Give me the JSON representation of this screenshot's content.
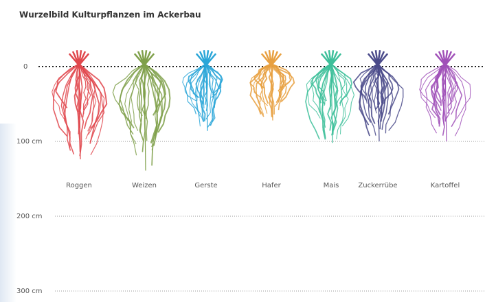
{
  "chart_data": {
    "type": "root-depth",
    "title": "Wurzelbild Kulturpflanzen im Ackerbau",
    "categories": [
      "Roggen",
      "Weizen",
      "Gerste",
      "Hafer",
      "Mais",
      "Zuckerrübe",
      "Kartoffel"
    ],
    "series": [
      {
        "values": [
          124,
          139,
          86,
          72,
          102,
          100,
          100
        ],
        "colors": [
          "#e0474c",
          "#7fa04a",
          "#2aa6d8",
          "#e8a040",
          "#3dbf9a",
          "#4a4a8a",
          "#a050b8"
        ]
      }
    ],
    "ylim": [
      0,
      300
    ],
    "yticks": [
      0,
      {
        "value": 100,
        "label": "100 cm"
      },
      {
        "value": 200,
        "label": "200 cm"
      },
      {
        "value": 300,
        "label": "300 cm"
      }
    ],
    "grid": true
  }
}
